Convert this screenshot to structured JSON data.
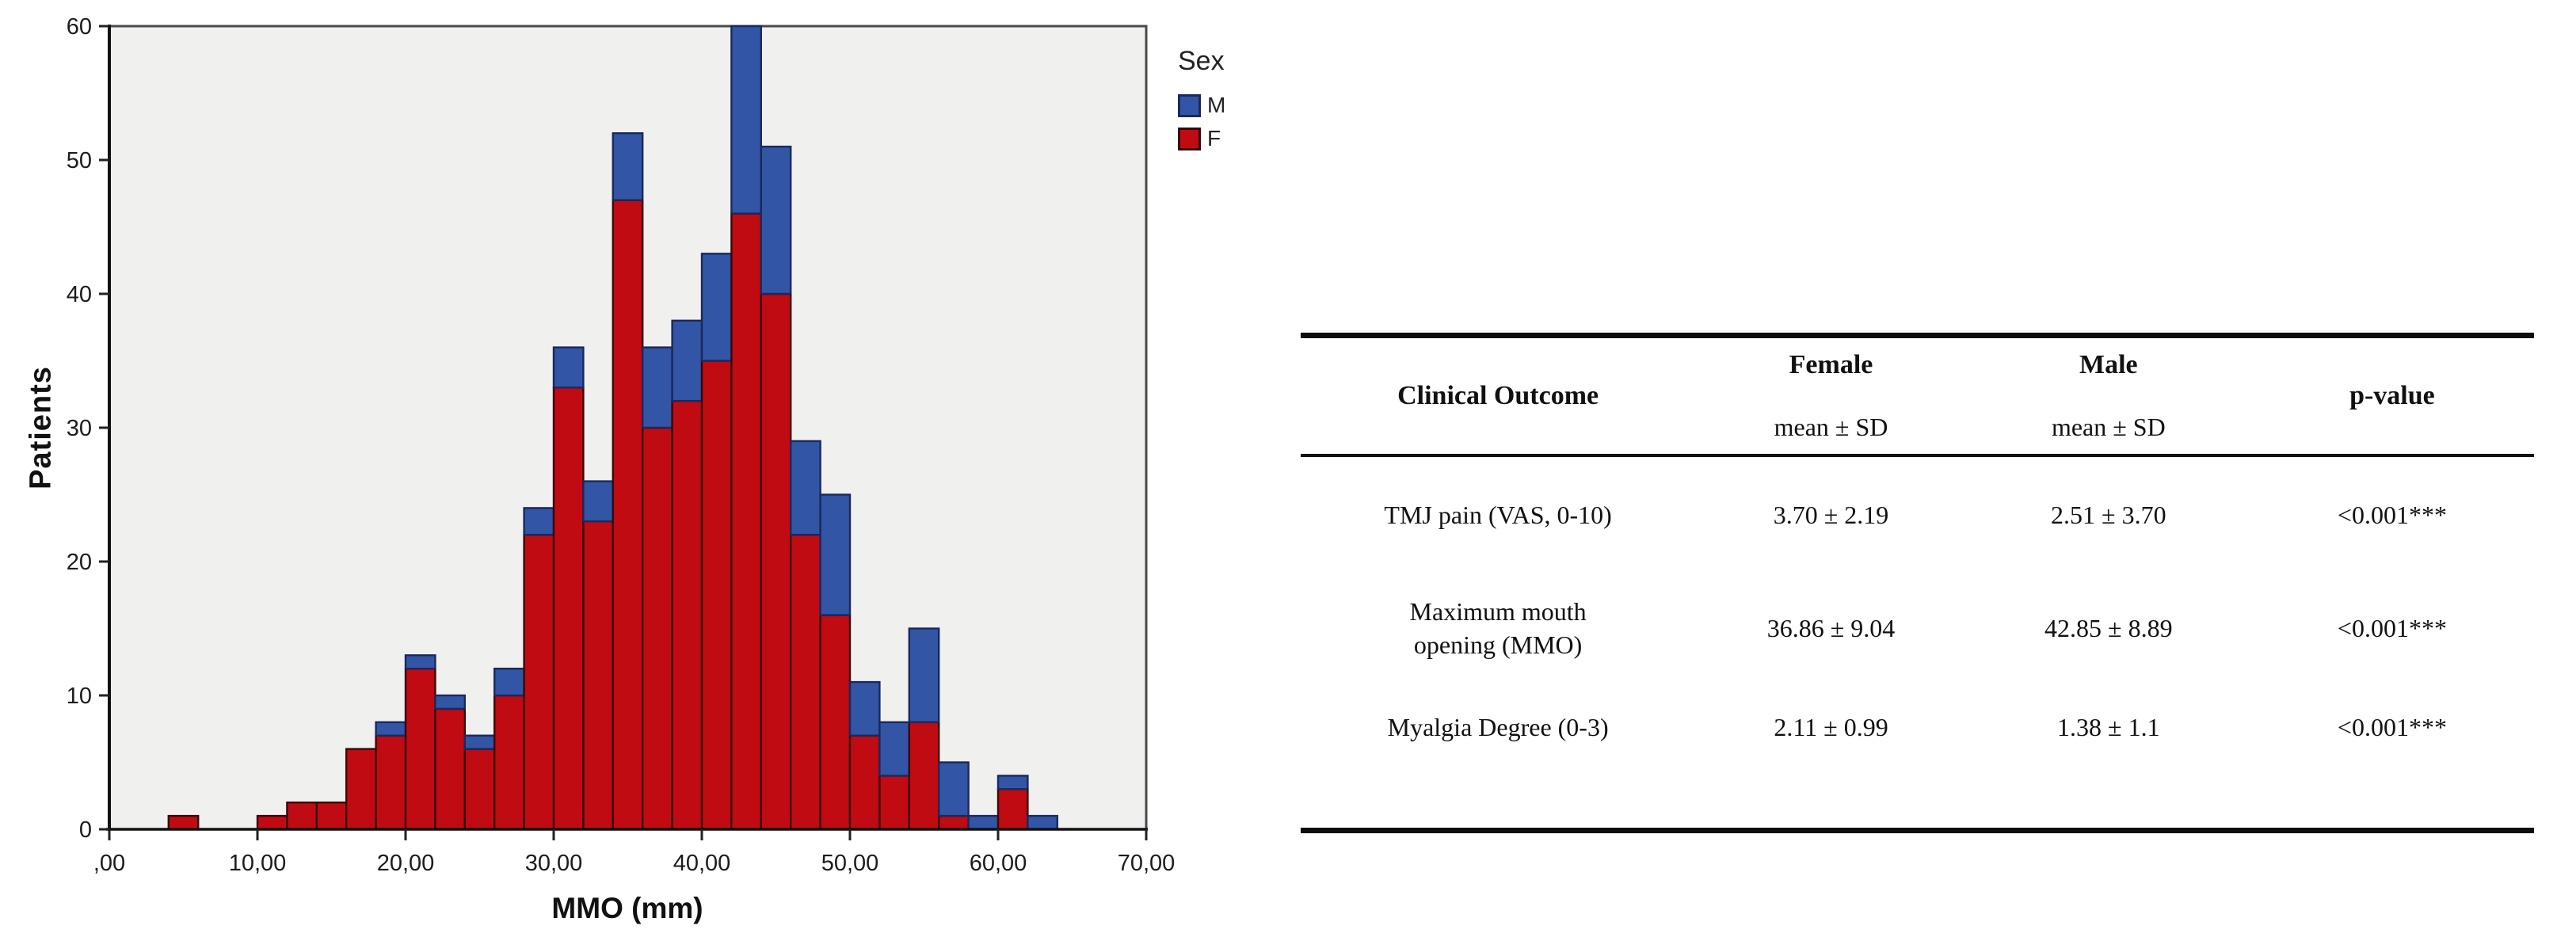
{
  "chart_data": {
    "type": "bar",
    "subtype": "stacked-histogram",
    "title": "",
    "xlabel": "MMO (mm)",
    "ylabel": "Patients",
    "xlim": [
      0,
      70
    ],
    "ylim": [
      0,
      60
    ],
    "grid": false,
    "plot_bg": "#F0F0EE",
    "frame_color": "#4a4a4a",
    "axis_color": "#111111",
    "x_ticks": [
      {
        "mm": 0,
        "label": ",00"
      },
      {
        "mm": 10,
        "label": "10,00"
      },
      {
        "mm": 20,
        "label": "20,00"
      },
      {
        "mm": 30,
        "label": "30,00"
      },
      {
        "mm": 40,
        "label": "40,00"
      },
      {
        "mm": 50,
        "label": "50,00"
      },
      {
        "mm": 60,
        "label": "60,00"
      },
      {
        "mm": 70,
        "label": "70,00"
      }
    ],
    "y_ticks": [
      {
        "v": 0,
        "label": "0"
      },
      {
        "v": 10,
        "label": "10"
      },
      {
        "v": 20,
        "label": "20"
      },
      {
        "v": 30,
        "label": "30"
      },
      {
        "v": 40,
        "label": "40"
      },
      {
        "v": 50,
        "label": "50"
      },
      {
        "v": 60,
        "label": "60"
      }
    ],
    "legend": {
      "title": "Sex",
      "position": "top-right-outside",
      "entries": [
        {
          "name": "M",
          "color": "#3355A5"
        },
        {
          "name": "F",
          "color": "#C00B12"
        }
      ]
    },
    "series": [
      {
        "name": "F",
        "color": "#C00B12",
        "stroke": "#38080B"
      },
      {
        "name": "M",
        "color": "#3355A5",
        "stroke": "#19295E"
      }
    ],
    "bin_width_mm": 2,
    "bins": [
      {
        "x0": 4,
        "x1": 6,
        "F": 1,
        "M": 0
      },
      {
        "x0": 10,
        "x1": 12,
        "F": 1,
        "M": 0
      },
      {
        "x0": 12,
        "x1": 14,
        "F": 2,
        "M": 0
      },
      {
        "x0": 14,
        "x1": 16,
        "F": 2,
        "M": 0
      },
      {
        "x0": 16,
        "x1": 18,
        "F": 6,
        "M": 0
      },
      {
        "x0": 18,
        "x1": 20,
        "F": 7,
        "M": 1
      },
      {
        "x0": 20,
        "x1": 22,
        "F": 12,
        "M": 1
      },
      {
        "x0": 22,
        "x1": 24,
        "F": 9,
        "M": 1
      },
      {
        "x0": 24,
        "x1": 26,
        "F": 6,
        "M": 1
      },
      {
        "x0": 26,
        "x1": 28,
        "F": 10,
        "M": 2
      },
      {
        "x0": 28,
        "x1": 30,
        "F": 22,
        "M": 2
      },
      {
        "x0": 30,
        "x1": 32,
        "F": 33,
        "M": 3
      },
      {
        "x0": 32,
        "x1": 34,
        "F": 23,
        "M": 3
      },
      {
        "x0": 34,
        "x1": 36,
        "F": 47,
        "M": 5
      },
      {
        "x0": 36,
        "x1": 38,
        "F": 30,
        "M": 6
      },
      {
        "x0": 38,
        "x1": 40,
        "F": 32,
        "M": 6
      },
      {
        "x0": 40,
        "x1": 42,
        "F": 35,
        "M": 8
      },
      {
        "x0": 42,
        "x1": 44,
        "F": 46,
        "M": 14
      },
      {
        "x0": 44,
        "x1": 46,
        "F": 40,
        "M": 11
      },
      {
        "x0": 46,
        "x1": 48,
        "F": 22,
        "M": 7
      },
      {
        "x0": 48,
        "x1": 50,
        "F": 16,
        "M": 9
      },
      {
        "x0": 50,
        "x1": 52,
        "F": 7,
        "M": 4
      },
      {
        "x0": 52,
        "x1": 54,
        "F": 4,
        "M": 4
      },
      {
        "x0": 54,
        "x1": 56,
        "F": 8,
        "M": 7
      },
      {
        "x0": 56,
        "x1": 58,
        "F": 1,
        "M": 4
      },
      {
        "x0": 58,
        "x1": 60,
        "F": 0,
        "M": 1
      },
      {
        "x0": 60,
        "x1": 62,
        "F": 3,
        "M": 1
      },
      {
        "x0": 62,
        "x1": 64,
        "F": 0,
        "M": 1
      }
    ]
  },
  "table": {
    "header": {
      "outcome": "Clinical Outcome",
      "female": "Female",
      "male": "Male",
      "stat_label": "mean ± SD",
      "pvalue": "p-value"
    },
    "rows": [
      {
        "outcome": "TMJ pain (VAS, 0-10)",
        "female": "3.70 ± 2.19",
        "male": "2.51 ± 3.70",
        "p": "<0.001***"
      },
      {
        "outcome": "Maximum mouth opening (MMO)",
        "female": "36.86 ± 9.04",
        "male": "42.85 ± 8.89",
        "p": "<0.001***"
      },
      {
        "outcome": "Myalgia Degree (0-3)",
        "female": "2.11 ± 0.99",
        "male": "1.38 ± 1.1",
        "p": "<0.001***"
      }
    ]
  }
}
